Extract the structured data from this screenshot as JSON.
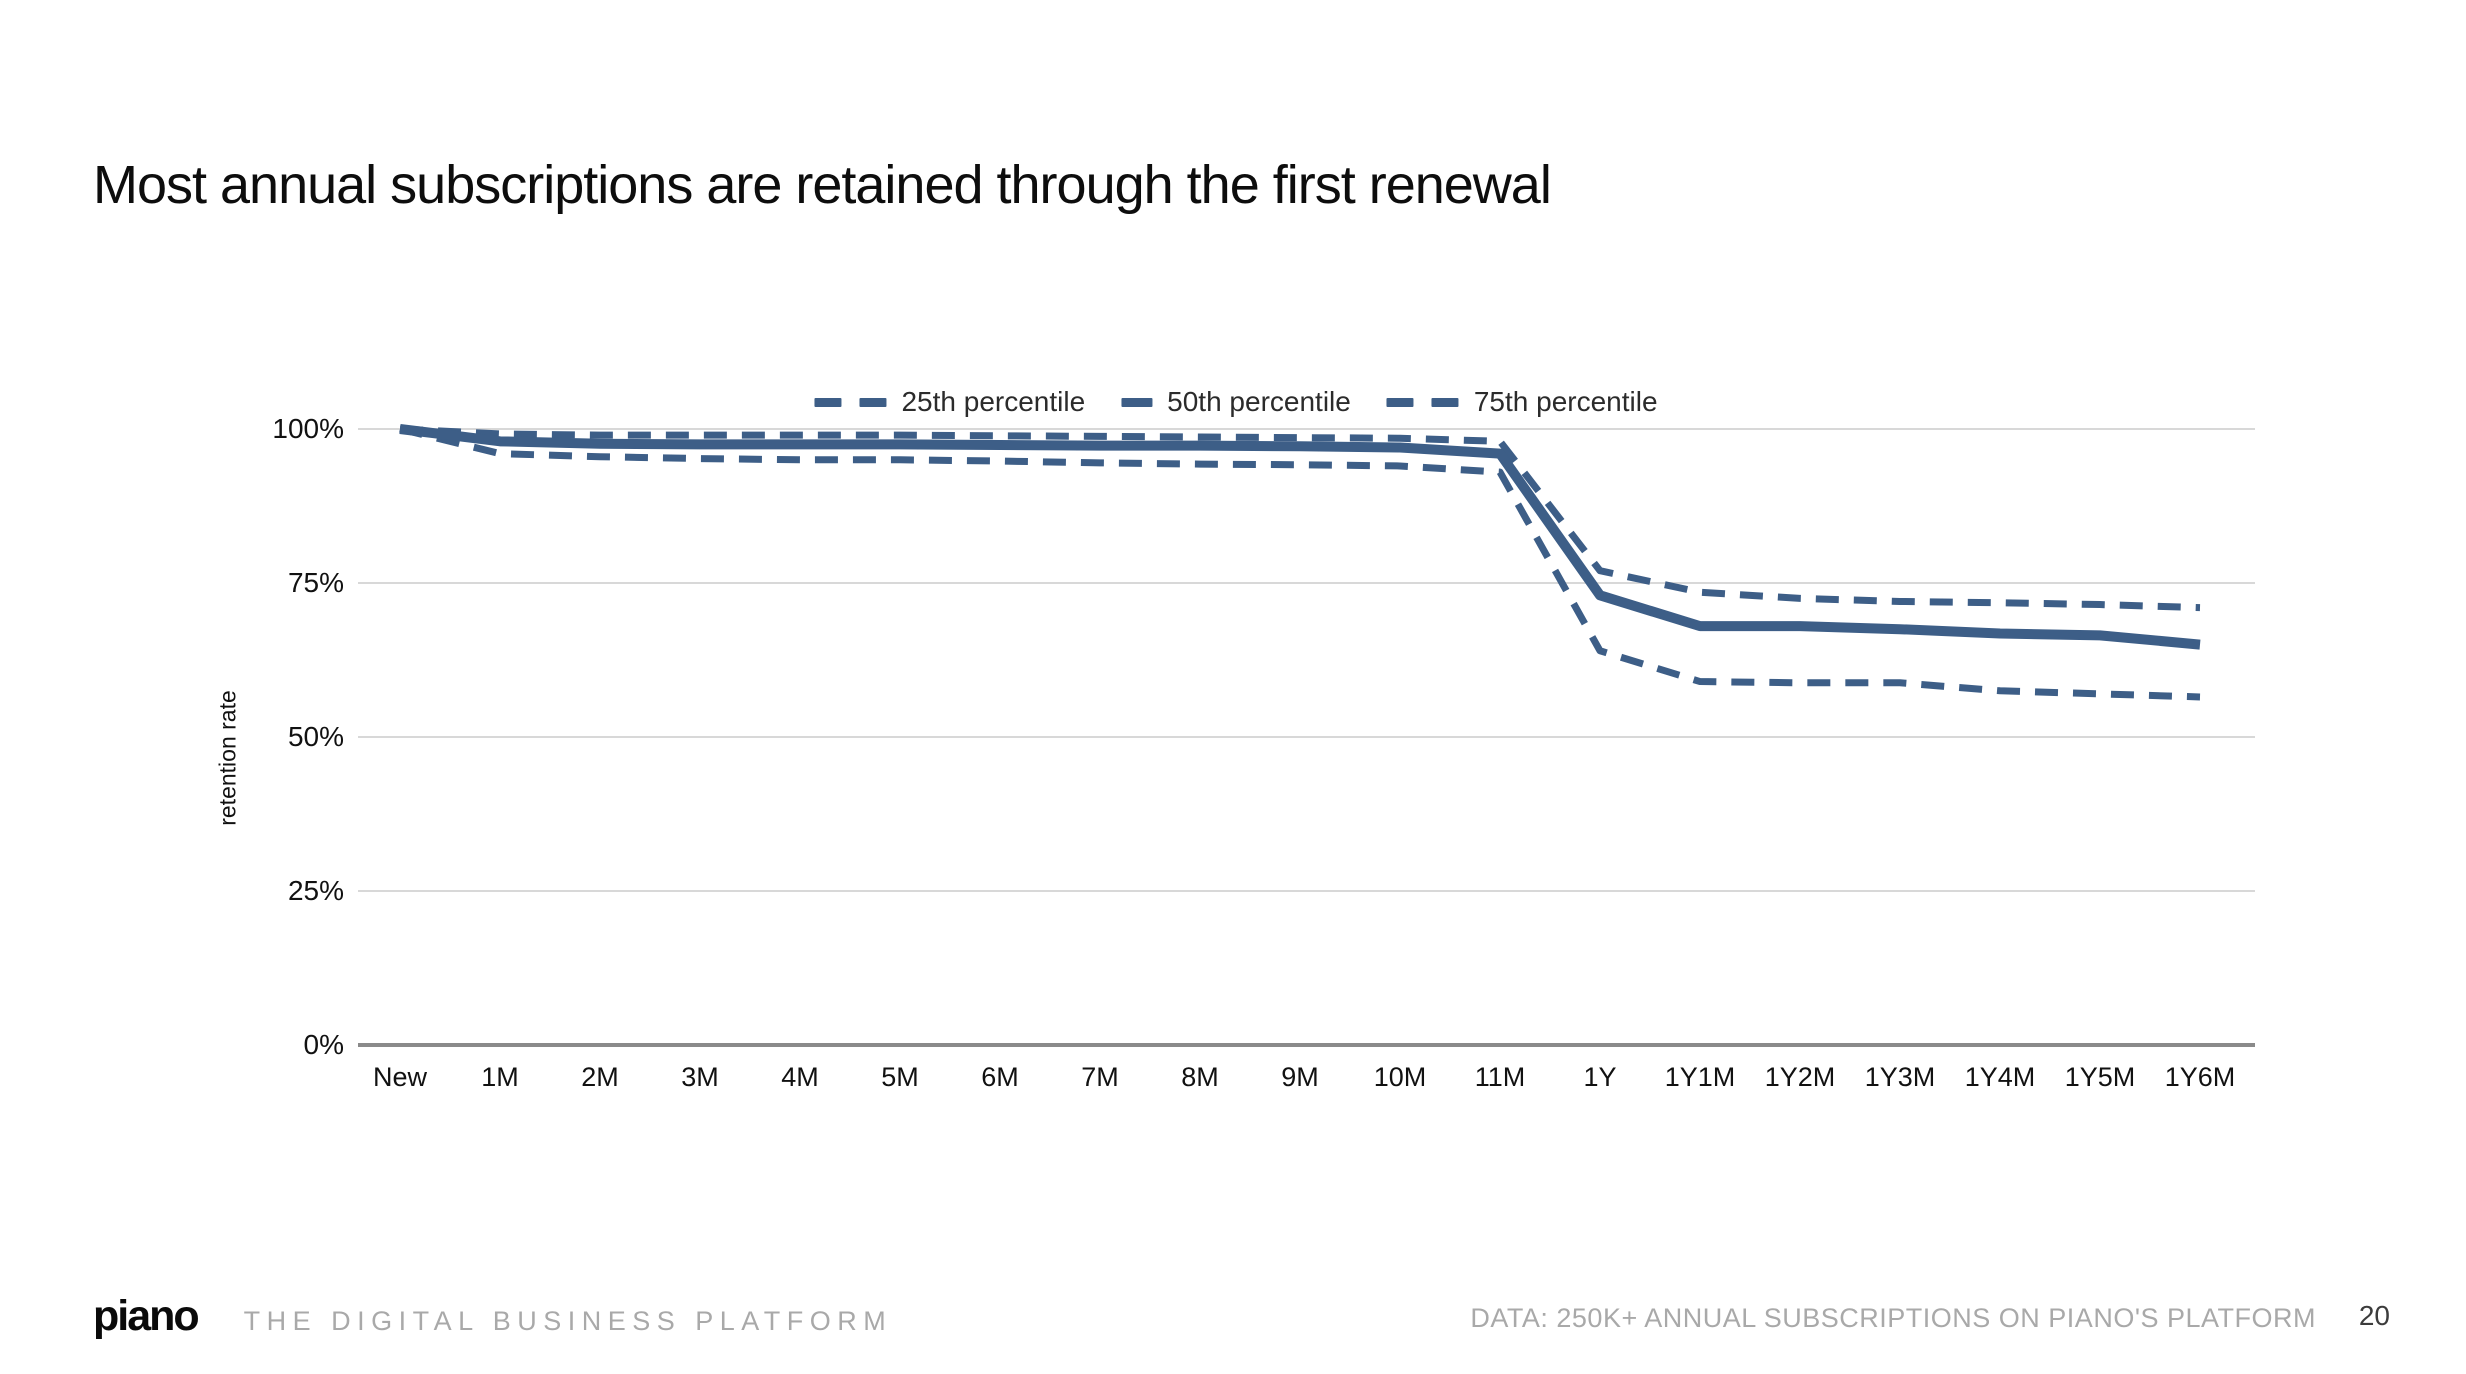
{
  "slide": {
    "title": "Most annual subscriptions are retained through the first renewal",
    "page_number": "20"
  },
  "footer": {
    "logo_text": "piano",
    "tagline": "THE DIGITAL BUSINESS PLATFORM",
    "data_note": "DATA: 250K+ ANNUAL SUBSCRIPTIONS ON PIANO'S PLATFORM"
  },
  "chart_data": {
    "type": "line",
    "title": "",
    "xlabel": "",
    "ylabel": "retention rate",
    "ylim": [
      0,
      100
    ],
    "grid": true,
    "legend_position": "top-center",
    "line_color": "#3d5e87",
    "gridline_color": "#d8d8d8",
    "axis_color": "#8a8a8a",
    "yticks": [
      {
        "value": 0,
        "label": "0%"
      },
      {
        "value": 25,
        "label": "25%"
      },
      {
        "value": 50,
        "label": "50%"
      },
      {
        "value": 75,
        "label": "75%"
      },
      {
        "value": 100,
        "label": "100%"
      }
    ],
    "categories": [
      "New",
      "1M",
      "2M",
      "3M",
      "4M",
      "5M",
      "6M",
      "7M",
      "8M",
      "9M",
      "10M",
      "11M",
      "1Y",
      "1Y1M",
      "1Y2M",
      "1Y3M",
      "1Y4M",
      "1Y5M",
      "1Y6M"
    ],
    "series": [
      {
        "name": "25th percentile",
        "style": "dashed",
        "values": [
          100,
          96,
          95.5,
          95.2,
          95,
          95,
          94.8,
          94.5,
          94.3,
          94.2,
          94,
          93,
          64,
          59,
          58.8,
          58.8,
          57.5,
          57,
          56.5
        ]
      },
      {
        "name": "50th percentile",
        "style": "solid",
        "values": [
          100,
          98,
          97.6,
          97.5,
          97.5,
          97.5,
          97.4,
          97.3,
          97.3,
          97.2,
          97,
          96,
          73,
          68,
          68,
          67.5,
          66.8,
          66.5,
          65
        ]
      },
      {
        "name": "75th percentile",
        "style": "dashed",
        "values": [
          100,
          99.2,
          99,
          99,
          99,
          99,
          98.9,
          98.8,
          98.7,
          98.6,
          98.5,
          98,
          77,
          73.5,
          72.5,
          72,
          71.8,
          71.5,
          71
        ]
      }
    ]
  }
}
